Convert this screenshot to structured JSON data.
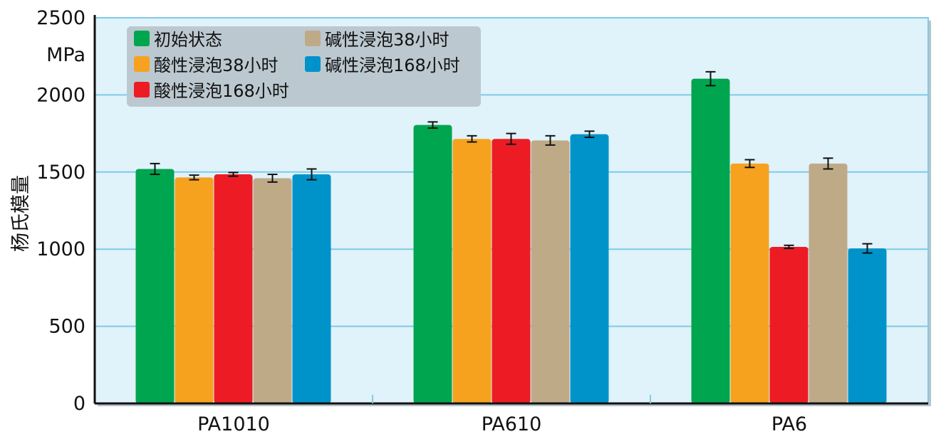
{
  "chart_data": {
    "type": "bar",
    "ylabel": "杨氏模量",
    "yunit": "MPa",
    "ylim": [
      0,
      2500
    ],
    "yticks": [
      "0",
      "500",
      "1000",
      "1500",
      "2000",
      "2500"
    ],
    "grid": true,
    "legend_position": "top-left",
    "categories": [
      "PA1010",
      "PA610",
      "PA6"
    ],
    "series": [
      {
        "name": "初始状态",
        "color": "#00a550",
        "values": [
          1520,
          1805,
          2105
        ],
        "errors": [
          35,
          20,
          45
        ]
      },
      {
        "name": "酸性浸泡38小时",
        "color": "#f6a21e",
        "values": [
          1465,
          1715,
          1555
        ],
        "errors": [
          15,
          20,
          25
        ]
      },
      {
        "name": "酸性浸泡168小时",
        "color": "#ed1c24",
        "values": [
          1485,
          1715,
          1015
        ],
        "errors": [
          12,
          35,
          10
        ]
      },
      {
        "name": "碱性浸泡38小时",
        "color": "#bfaa88",
        "values": [
          1460,
          1705,
          1555
        ],
        "errors": [
          25,
          30,
          35
        ]
      },
      {
        "name": "碱性浸泡168小时",
        "color": "#0093c9",
        "values": [
          1485,
          1745,
          1005
        ],
        "errors": [
          35,
          20,
          30
        ]
      }
    ]
  }
}
